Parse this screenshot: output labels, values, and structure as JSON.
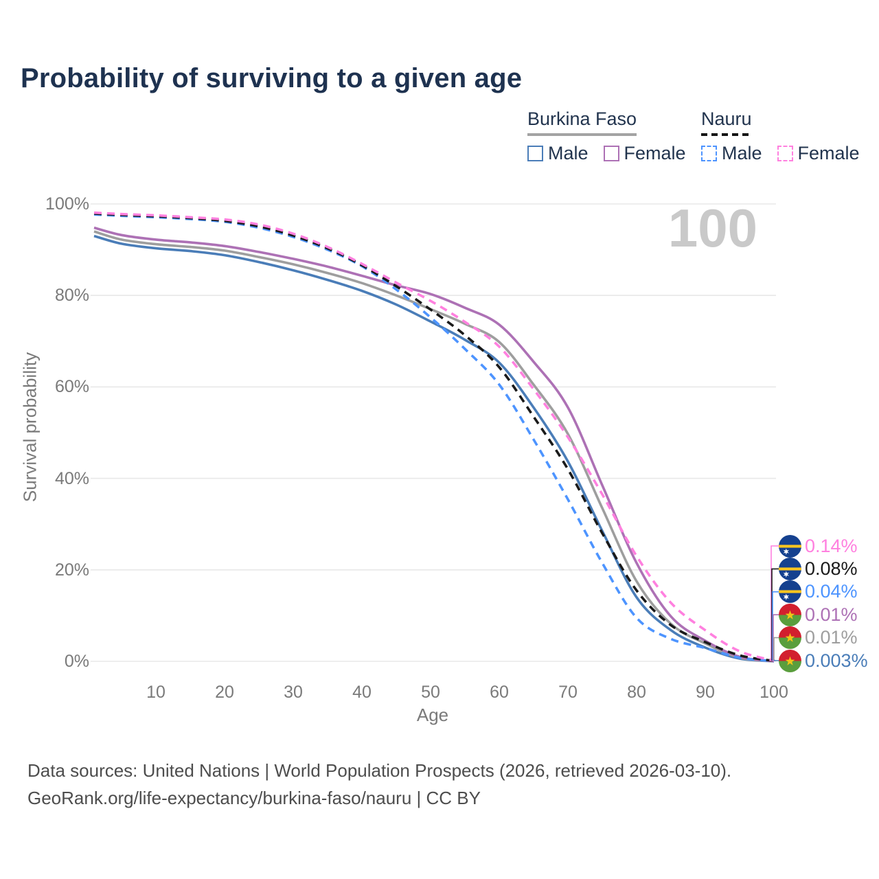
{
  "title": "Probability of surviving to a given age",
  "age_counter": "100",
  "legend": {
    "groups": [
      {
        "id": "burkina-faso",
        "title": "Burkina Faso",
        "line_style": "solid",
        "items": [
          {
            "label": "Male",
            "series": "bf_male"
          },
          {
            "label": "Female",
            "series": "bf_female"
          }
        ]
      },
      {
        "id": "nauru",
        "title": "Nauru",
        "line_style": "dashed",
        "items": [
          {
            "label": "Male",
            "series": "nauru_male"
          },
          {
            "label": "Female",
            "series": "nauru_female"
          }
        ]
      }
    ]
  },
  "chart_data": {
    "type": "line",
    "title": "Probability of surviving to a given age",
    "xlabel": "Age",
    "ylabel": "Survival probability",
    "xlim": [
      1,
      100
    ],
    "ylim": [
      0,
      100
    ],
    "grid": true,
    "x_ticks": [
      10,
      20,
      30,
      40,
      50,
      60,
      70,
      80,
      90,
      100
    ],
    "y_ticks": [
      {
        "value": 100,
        "label": "100%"
      },
      {
        "value": 80,
        "label": "80%"
      },
      {
        "value": 60,
        "label": "60%"
      },
      {
        "value": 40,
        "label": "40%"
      },
      {
        "value": 20,
        "label": "20%"
      },
      {
        "value": 0,
        "label": "0%"
      }
    ],
    "x": [
      1,
      5,
      10,
      15,
      20,
      25,
      30,
      35,
      40,
      45,
      50,
      55,
      60,
      65,
      70,
      75,
      80,
      85,
      90,
      95,
      100
    ],
    "series": [
      {
        "id": "bf_male",
        "name": "Burkina Faso Male",
        "country": "Burkina Faso",
        "sex": "male",
        "color": "#4a7db8",
        "dash": false,
        "values": [
          93.0,
          91.3,
          90.3,
          89.7,
          88.8,
          87.3,
          85.5,
          83.4,
          81.0,
          78.0,
          74.3,
          70.3,
          65.3,
          55.5,
          43.7,
          28.5,
          14.0,
          6.8,
          3.0,
          0.6,
          0.003
        ]
      },
      {
        "id": "bf_total",
        "name": "Burkina Faso",
        "country": "Burkina Faso",
        "sex": "both",
        "color": "#9e9e9e",
        "dash": false,
        "values": [
          94.0,
          92.2,
          91.2,
          90.6,
          89.8,
          88.4,
          86.8,
          84.9,
          82.7,
          80.0,
          77.0,
          73.8,
          69.8,
          60.5,
          49.7,
          33.5,
          17.5,
          8.2,
          3.9,
          0.8,
          0.01
        ]
      },
      {
        "id": "bf_female",
        "name": "Burkina Faso Female",
        "country": "Burkina Faso",
        "sex": "female",
        "color": "#ad71b5",
        "dash": false,
        "values": [
          94.8,
          93.2,
          92.2,
          91.6,
          90.8,
          89.5,
          88.0,
          86.3,
          84.3,
          82.2,
          80.3,
          77.3,
          73.6,
          65.5,
          55.5,
          38.5,
          21.5,
          9.8,
          4.5,
          1.0,
          0.01
        ]
      },
      {
        "id": "nauru_male",
        "name": "Nauru Male",
        "country": "Nauru",
        "sex": "male",
        "color": "#4d94ff",
        "dash": true,
        "values": [
          97.7,
          97.4,
          97.1,
          96.7,
          96.1,
          94.8,
          92.8,
          90.0,
          86.4,
          81.3,
          75.2,
          68.3,
          60.5,
          48.5,
          35.4,
          21.5,
          9.5,
          4.9,
          2.9,
          0.8,
          0.04
        ]
      },
      {
        "id": "nauru_total",
        "name": "Nauru",
        "country": "Nauru",
        "sex": "both",
        "color": "#1a1a1a",
        "dash": true,
        "values": [
          97.9,
          97.6,
          97.3,
          96.9,
          96.3,
          95.1,
          93.1,
          90.3,
          86.6,
          82.0,
          76.9,
          71.3,
          64.3,
          53.5,
          42.0,
          28.0,
          15.5,
          7.9,
          4.2,
          1.3,
          0.08
        ]
      },
      {
        "id": "nauru_female",
        "name": "Nauru Female",
        "country": "Nauru",
        "sex": "female",
        "color": "#ff80df",
        "dash": true,
        "values": [
          98.1,
          97.8,
          97.5,
          97.1,
          96.6,
          95.5,
          93.5,
          90.6,
          86.9,
          82.8,
          78.8,
          74.2,
          68.8,
          59.5,
          49.0,
          36.5,
          23.0,
          12.8,
          6.8,
          2.2,
          0.14
        ]
      }
    ],
    "end_labels": [
      {
        "series": "nauru_female",
        "flag": "nauru",
        "label": "0.14%"
      },
      {
        "series": "nauru_total",
        "flag": "nauru",
        "label": "0.08%"
      },
      {
        "series": "nauru_male",
        "flag": "nauru",
        "label": "0.04%"
      },
      {
        "series": "bf_female",
        "flag": "burkina-faso",
        "label": "0.01%"
      },
      {
        "series": "bf_total",
        "flag": "burkina-faso",
        "label": "0.01%"
      },
      {
        "series": "bf_male",
        "flag": "burkina-faso",
        "label": "0.003%"
      }
    ]
  },
  "footer": {
    "line1": "Data sources: United Nations | World Population Prospects (2026, retrieved 2026-03-10).",
    "line2": "GeoRank.org/life-expectancy/burkina-faso/nauru | CC BY"
  }
}
